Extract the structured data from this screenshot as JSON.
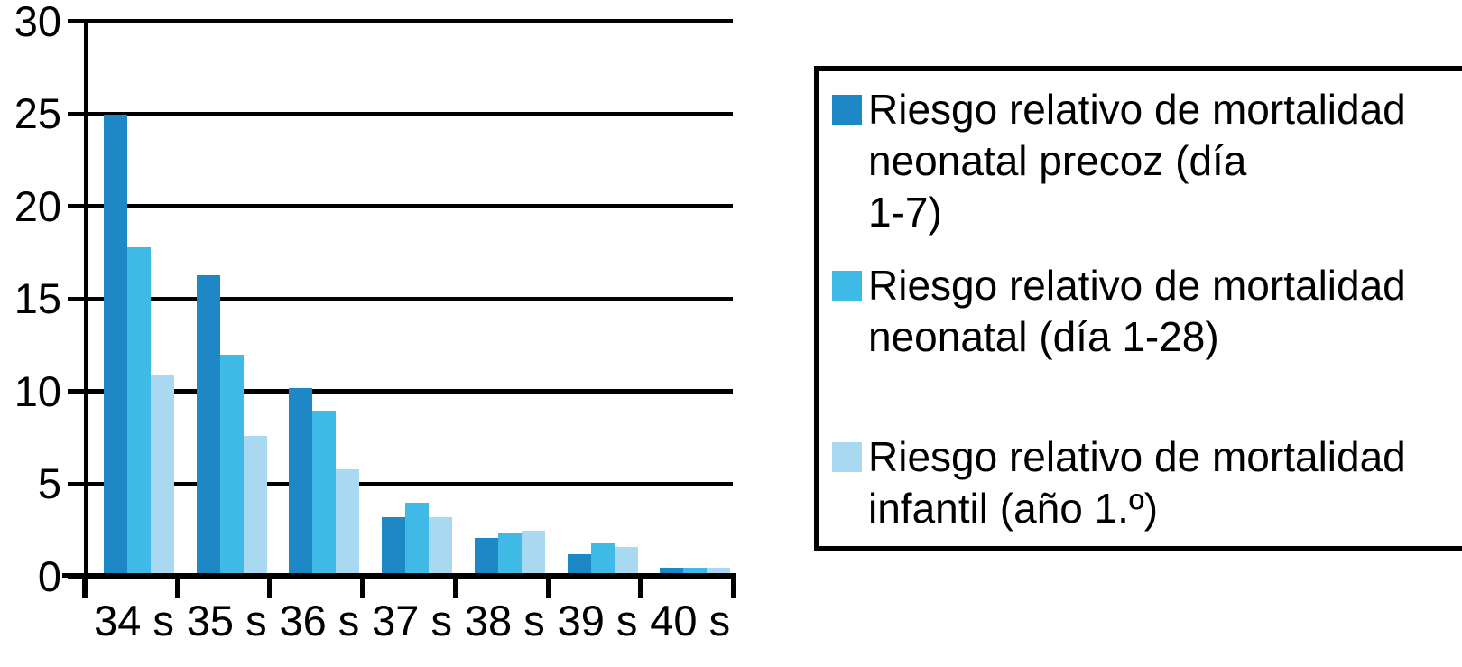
{
  "chart_data": {
    "type": "bar",
    "categories": [
      "34 s",
      "35 s",
      "36 s",
      "37 s",
      "38 s",
      "39 s",
      "40 s"
    ],
    "series": [
      {
        "name": "Riesgo relativo de mortalidad neonatal precoz (día 1-7)",
        "color": "#1e87c5",
        "values": [
          24.8,
          16.1,
          10.0,
          3.0,
          1.9,
          1.0,
          0.3
        ]
      },
      {
        "name": "Riesgo relativo de mortalidad neonatal (día 1-28)",
        "color": "#3fb9e6",
        "values": [
          17.6,
          11.8,
          8.8,
          3.8,
          2.2,
          1.6,
          0.3
        ]
      },
      {
        "name": "Riesgo relativo de mortalidad infantil (año 1.º)",
        "color": "#a9d9f0",
        "values": [
          10.7,
          7.4,
          5.6,
          3.0,
          2.3,
          1.4,
          0.3
        ]
      }
    ],
    "y_ticks": [
      0,
      5,
      10,
      15,
      20,
      25,
      30
    ],
    "ylim": [
      0,
      30
    ],
    "xlabel": "",
    "ylabel": "",
    "title": "",
    "grid": "horizontal",
    "legend_position": "right",
    "legend_entries": [
      {
        "color": "#1e87c5",
        "lines": [
          "Riesgo relativo de mortalidad",
          "neonatal precoz (día",
          "1-7)"
        ]
      },
      {
        "color": "#3fb9e6",
        "lines": [
          "Riesgo relativo de mortalidad",
          "neonatal (día 1-28)"
        ]
      },
      {
        "color": "#a9d9f0",
        "lines": [
          "Riesgo relativo de mortalidad",
          "infantil (año 1.º)"
        ]
      }
    ]
  }
}
